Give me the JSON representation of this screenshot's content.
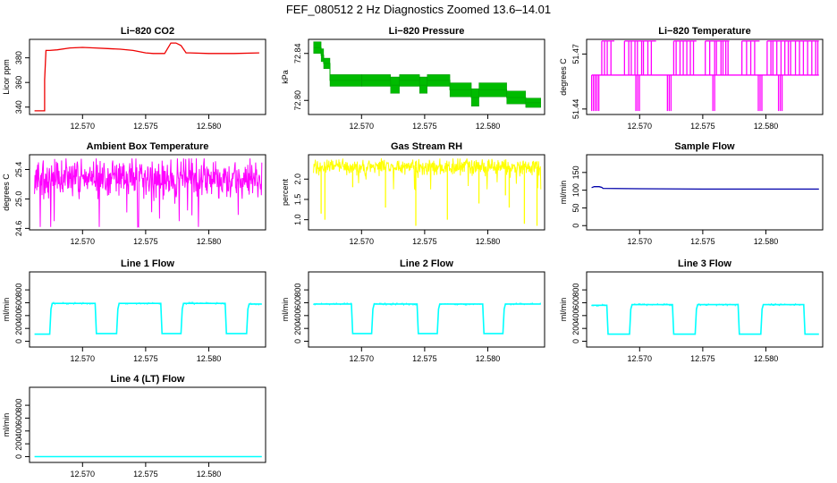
{
  "figure_title": "FEF_080512  2 Hz Diagnostics Zoomed 13.6–14.01",
  "colors": {
    "co2": "#ee0000",
    "pressure": "#00bb00",
    "licor_temp": "#ff00ff",
    "box_temp": "#ff00ff",
    "rh": "#ffff00",
    "sample_flow": "#0000aa",
    "line_flow": "#00ffff"
  },
  "chart_data": [
    {
      "id": "co2",
      "type": "line",
      "title": "Li−820 CO2",
      "ylabel": "Licor ppm",
      "xlabel": "",
      "xlim": [
        12.5658,
        12.5845
      ],
      "ylim": [
        334,
        395
      ],
      "xticks": [
        12.57,
        12.575,
        12.58
      ],
      "xtick_labels": [
        "12.570",
        "12.575",
        "12.580"
      ],
      "yticks": [
        340,
        360,
        380
      ],
      "ytick_labels": [
        "340",
        "360",
        "380"
      ],
      "series": [
        {
          "name": "CO2",
          "color": "#ee0000",
          "x": [
            12.5662,
            12.567,
            12.567,
            12.5671,
            12.5674,
            12.568,
            12.569,
            12.57,
            12.571,
            12.572,
            12.573,
            12.574,
            12.575,
            12.5756,
            12.576,
            12.5765,
            12.577,
            12.5774,
            12.5778,
            12.5782,
            12.5785,
            12.58,
            12.582,
            12.584
          ],
          "y": [
            337,
            337,
            362,
            386,
            386,
            386.5,
            388,
            388.5,
            388,
            387.5,
            387,
            386,
            384,
            383.5,
            383.5,
            383.5,
            392,
            392,
            390,
            384,
            384,
            383.5,
            383.5,
            384
          ]
        }
      ]
    },
    {
      "id": "pressure",
      "type": "band",
      "title": "Li−820 Pressure",
      "ylabel": "kPa",
      "xlabel": "",
      "xlim": [
        12.5658,
        12.5845
      ],
      "ylim": [
        72.788,
        72.852
      ],
      "xticks": [
        12.57,
        12.575,
        12.58
      ],
      "xtick_labels": [
        "12.570",
        "12.575",
        "12.580"
      ],
      "yticks": [
        72.8,
        72.84
      ],
      "ytick_labels": [
        "72.80",
        "72.84"
      ],
      "series": [
        {
          "name": "Pressure",
          "color": "#00bb00",
          "segments": [
            [
              12.5662,
              12.5668,
              72.84,
              72.85
            ],
            [
              12.5668,
              12.567,
              72.833,
              72.844
            ],
            [
              12.567,
              12.5675,
              72.827,
              72.836
            ],
            [
              12.5675,
              12.57,
              72.812,
              72.822
            ],
            [
              12.57,
              12.5723,
              72.812,
              72.822
            ],
            [
              12.5723,
              12.573,
              72.806,
              72.82
            ],
            [
              12.573,
              12.5746,
              72.812,
              72.822
            ],
            [
              12.5746,
              12.5752,
              72.806,
              72.82
            ],
            [
              12.5752,
              12.577,
              72.812,
              72.822
            ],
            [
              12.577,
              12.5787,
              72.803,
              72.815
            ],
            [
              12.5787,
              12.5793,
              72.795,
              72.81
            ],
            [
              12.5793,
              12.5815,
              72.803,
              72.815
            ],
            [
              12.5815,
              12.583,
              72.797,
              72.808
            ],
            [
              12.583,
              12.5842,
              72.794,
              72.802
            ]
          ]
        }
      ]
    },
    {
      "id": "licor-temperature",
      "type": "line",
      "title": "Li−820 Temperature",
      "ylabel": "degrees C",
      "xlabel": "",
      "xlim": [
        12.5658,
        12.5845
      ],
      "ylim": [
        51.437,
        51.478
      ],
      "xticks": [
        12.57,
        12.575,
        12.58
      ],
      "xtick_labels": [
        "12.570",
        "12.575",
        "12.580"
      ],
      "yticks": [
        51.44,
        51.47
      ],
      "ytick_labels": [
        "51.44",
        "51.47"
      ],
      "series": [
        {
          "name": "Licor Temperature",
          "color": "#ff00ff",
          "levels": [
            51.4389,
            51.4585,
            51.4771
          ],
          "x_start": 12.5662,
          "x_end": 12.5842,
          "high_bands": [
            [
              12.567,
              12.568
            ],
            [
              12.5688,
              12.5713
            ],
            [
              12.5727,
              12.5745
            ],
            [
              12.5752,
              12.5771
            ],
            [
              12.5781,
              12.5795
            ],
            [
              12.5801,
              12.5842
            ]
          ],
          "low_bands": [
            [
              12.5662,
              12.5668
            ],
            [
              12.5697,
              12.57
            ],
            [
              12.5722,
              12.5725
            ],
            [
              12.5758,
              12.576
            ],
            [
              12.5794,
              12.5797
            ],
            [
              12.581,
              12.5814
            ]
          ]
        }
      ]
    },
    {
      "id": "box-temperature",
      "type": "noise",
      "title": "Ambient Box Temperature",
      "ylabel": "degrees C",
      "xlabel": "",
      "xlim": [
        12.5658,
        12.5845
      ],
      "ylim": [
        24.58,
        25.6
      ],
      "xticks": [
        12.57,
        12.575,
        12.58
      ],
      "xtick_labels": [
        "12.570",
        "12.575",
        "12.580"
      ],
      "yticks": [
        24.6,
        25.0,
        25.4
      ],
      "ytick_labels": [
        "24.6",
        "25.0",
        "25.4"
      ],
      "series": [
        {
          "name": "Box Temperature",
          "color": "#ff00ff",
          "x_start": 12.5662,
          "x_end": 12.5842,
          "center": 25.28,
          "spread": 0.2,
          "min": 24.62,
          "max": 25.55
        }
      ]
    },
    {
      "id": "gas-stream-rh",
      "type": "noise",
      "title": "Gas Stream RH",
      "ylabel": "percent",
      "xlabel": "",
      "xlim": [
        12.5658,
        12.5845
      ],
      "ylim": [
        0.75,
        2.6
      ],
      "xticks": [
        12.57,
        12.575,
        12.58
      ],
      "xtick_labels": [
        "12.570",
        "12.575",
        "12.580"
      ],
      "yticks": [
        1.0,
        1.5,
        2.0
      ],
      "ytick_labels": [
        "1.0",
        "1.5",
        "2.0"
      ],
      "series": [
        {
          "name": "RH",
          "color": "#ffff00",
          "x_start": 12.5662,
          "x_end": 12.5842,
          "center": 2.3,
          "spread": 0.15,
          "min": 0.85,
          "max": 2.55,
          "dips": [
            [
              12.5668,
              1.15
            ],
            [
              12.5671,
              1.0
            ],
            [
              12.5693,
              1.8
            ],
            [
              12.5719,
              1.3
            ],
            [
              12.5743,
              0.85
            ],
            [
              12.5768,
              1.0
            ],
            [
              12.5793,
              1.4
            ],
            [
              12.5814,
              1.6
            ],
            [
              12.5817,
              1.3
            ],
            [
              12.5829,
              0.9
            ],
            [
              12.5839,
              0.85
            ]
          ]
        }
      ]
    },
    {
      "id": "sample-flow",
      "type": "line",
      "title": "Sample Flow",
      "ylabel": "ml/min",
      "xlabel": "",
      "xlim": [
        12.5658,
        12.5845
      ],
      "ylim": [
        -12,
        200
      ],
      "xticks": [
        12.57,
        12.575,
        12.58
      ],
      "xtick_labels": [
        "12.570",
        "12.575",
        "12.580"
      ],
      "yticks": [
        0,
        50,
        100,
        150
      ],
      "ytick_labels": [
        "0",
        "50",
        "100",
        "150"
      ],
      "series": [
        {
          "name": "Sample Flow",
          "color": "#0000aa",
          "x": [
            12.5662,
            12.5664,
            12.5668,
            12.567,
            12.5671,
            12.57,
            12.575,
            12.58,
            12.5842
          ],
          "y": [
            107,
            110,
            110,
            108,
            105,
            104,
            103,
            103,
            103
          ]
        }
      ]
    },
    {
      "id": "line-1-flow",
      "type": "line",
      "title": "Line 1 Flow",
      "ylabel": "ml/min",
      "xlabel": "",
      "xlim": [
        12.5658,
        12.5845
      ],
      "ylim": [
        -90,
        1080
      ],
      "xticks": [
        12.57,
        12.575,
        12.58
      ],
      "xtick_labels": [
        "12.570",
        "12.575",
        "12.580"
      ],
      "yticks": [
        0,
        200,
        400,
        600,
        800
      ],
      "ytick_labels": [
        "0",
        "200",
        "400",
        "600",
        "800"
      ],
      "series": [
        {
          "name": "Line 1 Flow",
          "color": "#00ffff",
          "x": [
            12.5662,
            12.5674,
            12.5675,
            12.5676,
            12.571,
            12.5711,
            12.5727,
            12.5728,
            12.5729,
            12.5762,
            12.5763,
            12.5778,
            12.5779,
            12.578,
            12.5813,
            12.5814,
            12.583,
            12.5831,
            12.5832,
            12.5842
          ],
          "y": [
            110,
            110,
            500,
            590,
            590,
            120,
            120,
            500,
            590,
            590,
            120,
            120,
            500,
            590,
            590,
            120,
            120,
            500,
            580,
            580
          ]
        }
      ]
    },
    {
      "id": "line-2-flow",
      "type": "line",
      "title": "Line 2 Flow",
      "ylabel": "ml/min",
      "xlabel": "",
      "xlim": [
        12.5658,
        12.5845
      ],
      "ylim": [
        -90,
        1080
      ],
      "xticks": [
        12.57,
        12.575,
        12.58
      ],
      "xtick_labels": [
        "12.570",
        "12.575",
        "12.580"
      ],
      "yticks": [
        0,
        200,
        400,
        600,
        800
      ],
      "ytick_labels": [
        "0",
        "200",
        "400",
        "600",
        "800"
      ],
      "series": [
        {
          "name": "Line 2 Flow",
          "color": "#00ffff",
          "x": [
            12.5662,
            12.5692,
            12.5693,
            12.5708,
            12.5709,
            12.571,
            12.5744,
            12.5745,
            12.576,
            12.5761,
            12.5762,
            12.5796,
            12.5797,
            12.5812,
            12.5813,
            12.5814,
            12.5842
          ],
          "y": [
            580,
            580,
            120,
            120,
            500,
            580,
            580,
            120,
            120,
            500,
            580,
            580,
            120,
            120,
            500,
            580,
            580
          ]
        }
      ]
    },
    {
      "id": "line-3-flow",
      "type": "line",
      "title": "Line 3 Flow",
      "ylabel": "ml/min",
      "xlabel": "",
      "xlim": [
        12.5658,
        12.5845
      ],
      "ylim": [
        -90,
        1080
      ],
      "xticks": [
        12.57,
        12.575,
        12.58
      ],
      "xtick_labels": [
        "12.570",
        "12.575",
        "12.580"
      ],
      "yticks": [
        0,
        200,
        400,
        600,
        800
      ],
      "ytick_labels": [
        "0",
        "200",
        "400",
        "600",
        "800"
      ],
      "series": [
        {
          "name": "Line 3 Flow",
          "color": "#00ffff",
          "x": [
            12.5662,
            12.5674,
            12.5675,
            12.5692,
            12.5693,
            12.5694,
            12.5726,
            12.5727,
            12.5744,
            12.5745,
            12.5746,
            12.5778,
            12.5779,
            12.5796,
            12.5797,
            12.5798,
            12.583,
            12.5831,
            12.5842
          ],
          "y": [
            560,
            560,
            110,
            110,
            500,
            570,
            570,
            110,
            110,
            500,
            570,
            570,
            110,
            110,
            500,
            570,
            570,
            110,
            110
          ]
        }
      ]
    },
    {
      "id": "line-4-flow",
      "type": "line",
      "title": "Line 4 (LT) Flow",
      "ylabel": "ml/min",
      "xlabel": "",
      "xlim": [
        12.5658,
        12.5845
      ],
      "ylim": [
        -90,
        1080
      ],
      "xticks": [
        12.57,
        12.575,
        12.58
      ],
      "xtick_labels": [
        "12.570",
        "12.575",
        "12.580"
      ],
      "yticks": [
        0,
        200,
        400,
        600,
        800
      ],
      "ytick_labels": [
        "0",
        "200",
        "400",
        "600",
        "800"
      ],
      "series": [
        {
          "name": "Line 4 Flow",
          "color": "#00ffff",
          "x": [
            12.5662,
            12.5842
          ],
          "y": [
            0,
            0
          ]
        }
      ]
    }
  ]
}
